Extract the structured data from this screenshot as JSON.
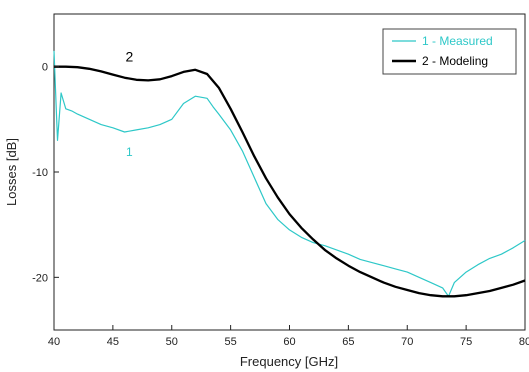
{
  "chart_data": {
    "type": "line",
    "title": "",
    "xlabel": "Frequency [GHz]",
    "ylabel": "Losses [dB]",
    "xlim": [
      40,
      80
    ],
    "ylim": [
      -25,
      5
    ],
    "x_ticks": [
      40,
      45,
      50,
      55,
      60,
      65,
      70,
      75,
      80
    ],
    "y_ticks": [
      0,
      -10,
      -20
    ],
    "grid": false,
    "legend": "top-right",
    "annotations": [
      {
        "text": "2",
        "x": 46.4,
        "y": 0.5
      },
      {
        "text": "1",
        "x": 46.4,
        "y": -8.5
      }
    ],
    "series": [
      {
        "name": "1 - Measured",
        "color": "#2ec8c8",
        "x": [
          40.0,
          40.3,
          40.6,
          41.0,
          41.5,
          42.0,
          43.0,
          44.0,
          45.0,
          46.0,
          47.0,
          48.0,
          49.0,
          50.0,
          51.0,
          52.0,
          53.0,
          53.5,
          54.0,
          55.0,
          56.0,
          57.0,
          58.0,
          59.0,
          60.0,
          61.0,
          62.0,
          63.0,
          64.0,
          65.0,
          66.0,
          67.0,
          68.0,
          69.0,
          70.0,
          71.0,
          72.0,
          73.0,
          73.5,
          74.0,
          75.0,
          76.0,
          77.0,
          78.0,
          79.0,
          80.0
        ],
        "values": [
          1.5,
          -7.0,
          -2.5,
          -4.0,
          -4.2,
          -4.5,
          -5.0,
          -5.5,
          -5.8,
          -6.2,
          -6.0,
          -5.8,
          -5.5,
          -5.0,
          -3.5,
          -2.8,
          -3.0,
          -3.8,
          -4.5,
          -6.0,
          -8.0,
          -10.5,
          -13.0,
          -14.5,
          -15.5,
          -16.2,
          -16.7,
          -17.0,
          -17.4,
          -17.8,
          -18.3,
          -18.6,
          -18.9,
          -19.2,
          -19.5,
          -20.0,
          -20.5,
          -21.0,
          -21.8,
          -20.5,
          -19.5,
          -18.8,
          -18.2,
          -17.8,
          -17.2,
          -16.5
        ]
      },
      {
        "name": "2 - Modeling",
        "color": "#000000",
        "x": [
          40.0,
          41.0,
          42.0,
          43.0,
          44.0,
          45.0,
          46.0,
          47.0,
          48.0,
          49.0,
          50.0,
          51.0,
          52.0,
          53.0,
          54.0,
          55.0,
          56.0,
          57.0,
          58.0,
          59.0,
          60.0,
          61.0,
          62.0,
          63.0,
          64.0,
          65.0,
          66.0,
          67.0,
          68.0,
          69.0,
          70.0,
          71.0,
          72.0,
          73.0,
          74.0,
          75.0,
          76.0,
          77.0,
          78.0,
          79.0,
          80.0
        ],
        "values": [
          0.0,
          0.0,
          -0.05,
          -0.2,
          -0.45,
          -0.75,
          -1.05,
          -1.25,
          -1.3,
          -1.2,
          -0.9,
          -0.5,
          -0.3,
          -0.7,
          -2.0,
          -4.0,
          -6.2,
          -8.5,
          -10.6,
          -12.4,
          -14.0,
          -15.3,
          -16.4,
          -17.4,
          -18.2,
          -18.9,
          -19.5,
          -20.0,
          -20.5,
          -20.9,
          -21.2,
          -21.5,
          -21.7,
          -21.8,
          -21.8,
          -21.7,
          -21.5,
          -21.3,
          -21.0,
          -20.7,
          -20.3
        ]
      }
    ]
  }
}
